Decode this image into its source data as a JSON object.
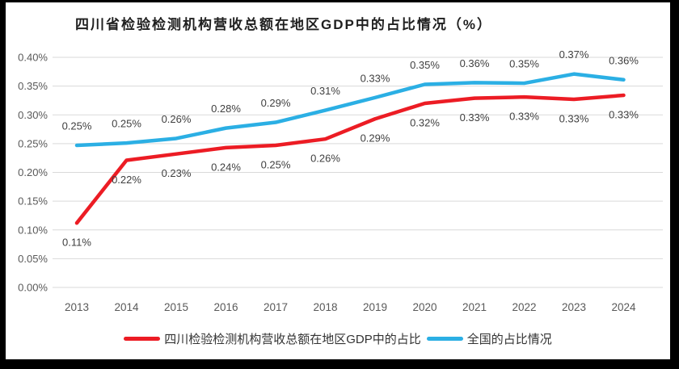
{
  "frame": {
    "background_color": "#000000",
    "panel_background_color": "#ffffff"
  },
  "chart_data": {
    "type": "line",
    "title": "四川省检验检测机构营收总额在地区GDP中的占比情况（%）",
    "categories": [
      "2013",
      "2014",
      "2015",
      "2016",
      "2017",
      "2018",
      "2019",
      "2020",
      "2021",
      "2022",
      "2023",
      "2024"
    ],
    "series": [
      {
        "name": "四川检验检测机构营收总额在地区GDP中的占比",
        "color": "#ec1c24",
        "label_position": "below",
        "values": [
          0.11,
          0.22,
          0.23,
          0.24,
          0.25,
          0.26,
          0.29,
          0.32,
          0.33,
          0.33,
          0.33,
          0.33
        ],
        "labels": [
          "0.11%",
          "0.22%",
          "0.23%",
          "0.24%",
          "0.25%",
          "0.26%",
          "0.29%",
          "0.32%",
          "0.33%",
          "0.33%",
          "0.33%",
          "0.33%"
        ],
        "values_precise": [
          0.112,
          0.221,
          0.232,
          0.243,
          0.247,
          0.258,
          0.293,
          0.32,
          0.329,
          0.331,
          0.327,
          0.334
        ]
      },
      {
        "name": "全国的占比情况",
        "color": "#2bafe4",
        "label_position": "above",
        "values": [
          0.25,
          0.25,
          0.26,
          0.28,
          0.29,
          0.31,
          0.33,
          0.35,
          0.36,
          0.35,
          0.37,
          0.36
        ],
        "labels": [
          "0.25%",
          "0.25%",
          "0.26%",
          "0.28%",
          "0.29%",
          "0.31%",
          "0.33%",
          "0.35%",
          "0.36%",
          "0.35%",
          "0.37%",
          "0.36%"
        ],
        "values_precise": [
          0.247,
          0.251,
          0.259,
          0.277,
          0.287,
          0.308,
          0.33,
          0.353,
          0.356,
          0.355,
          0.371,
          0.361
        ]
      }
    ],
    "y_axis": {
      "min": 0.0,
      "max": 0.4,
      "step": 0.05,
      "ticks": [
        "0.40%",
        "0.35%",
        "0.30%",
        "0.25%",
        "0.20%",
        "0.15%",
        "0.10%",
        "0.05%",
        "0.00%"
      ]
    },
    "grid": "horizontal",
    "legend_position": "bottom",
    "style": {
      "grid_color": "#d9d9d9",
      "axis_text_color": "#595959",
      "data_label_color": "#3f3f3f",
      "line_width": 4.5
    }
  }
}
